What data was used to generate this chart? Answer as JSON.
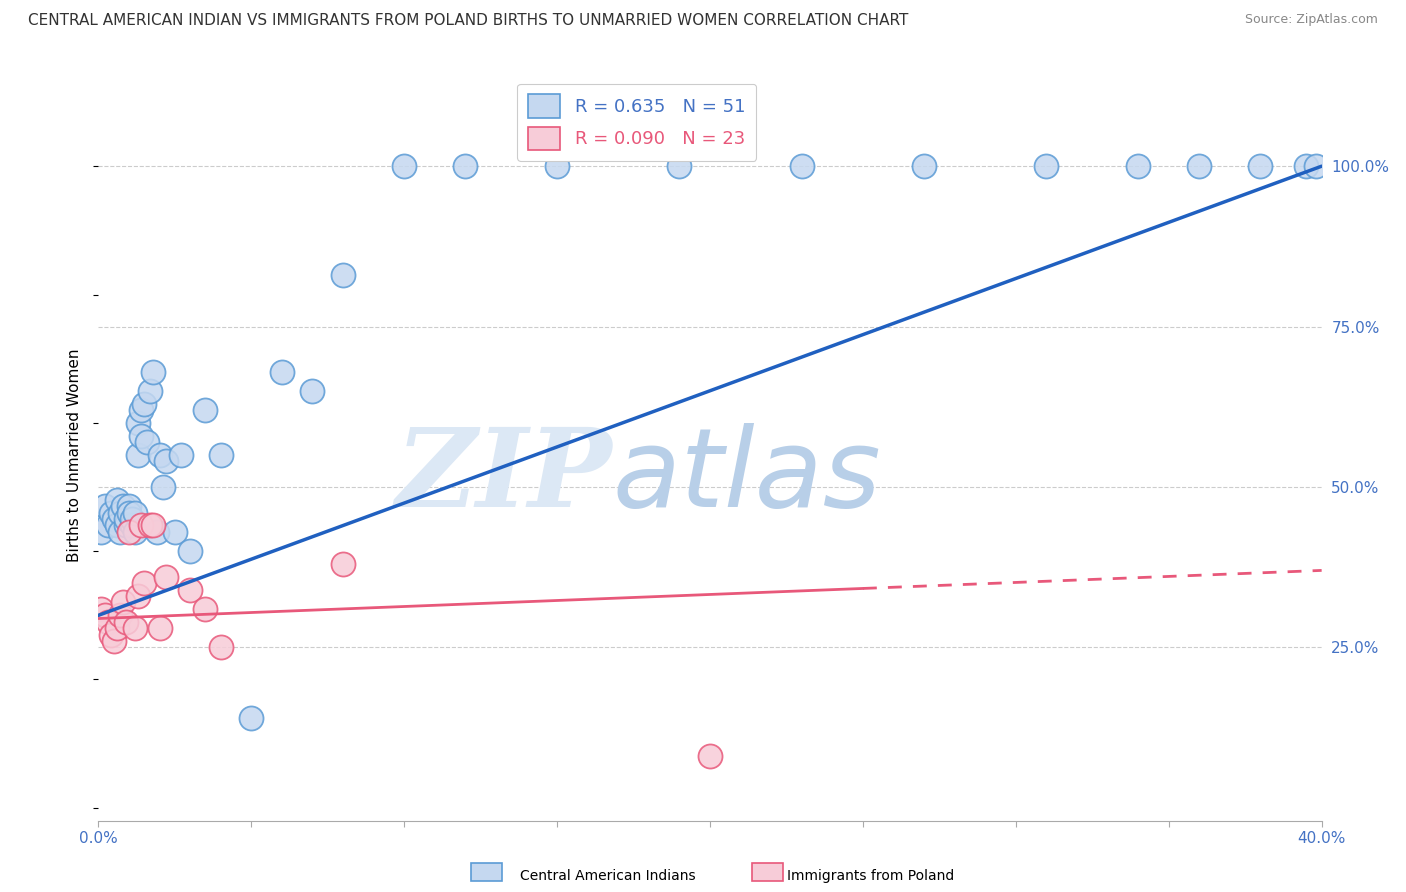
{
  "title": "CENTRAL AMERICAN INDIAN VS IMMIGRANTS FROM POLAND BIRTHS TO UNMARRIED WOMEN CORRELATION CHART",
  "source": "Source: ZipAtlas.com",
  "ylabel": "Births to Unmarried Women",
  "yaxis_ticks": [
    "25.0%",
    "50.0%",
    "75.0%",
    "100.0%"
  ],
  "yaxis_tick_vals": [
    0.25,
    0.5,
    0.75,
    1.0
  ],
  "legend_label_blue": "Central American Indians",
  "legend_label_pink": "Immigrants from Poland",
  "blue_color": "#c5d8f0",
  "blue_edge_color": "#5b9bd5",
  "pink_color": "#f7ccd8",
  "pink_edge_color": "#e8587a",
  "blue_line_color": "#2060c0",
  "pink_line_color": "#e8587a",
  "blue_scatter_x": [
    0.001,
    0.002,
    0.003,
    0.004,
    0.005,
    0.006,
    0.006,
    0.007,
    0.007,
    0.008,
    0.009,
    0.009,
    0.01,
    0.01,
    0.011,
    0.011,
    0.012,
    0.012,
    0.013,
    0.013,
    0.014,
    0.014,
    0.015,
    0.016,
    0.017,
    0.018,
    0.019,
    0.02,
    0.021,
    0.022,
    0.025,
    0.027,
    0.03,
    0.035,
    0.04,
    0.05,
    0.06,
    0.07,
    0.08,
    0.1,
    0.12,
    0.15,
    0.19,
    0.23,
    0.27,
    0.31,
    0.34,
    0.36,
    0.38,
    0.395,
    0.398
  ],
  "blue_scatter_y": [
    0.43,
    0.47,
    0.44,
    0.46,
    0.45,
    0.48,
    0.44,
    0.46,
    0.43,
    0.47,
    0.44,
    0.45,
    0.47,
    0.46,
    0.44,
    0.45,
    0.43,
    0.46,
    0.55,
    0.6,
    0.58,
    0.62,
    0.63,
    0.57,
    0.65,
    0.68,
    0.43,
    0.55,
    0.5,
    0.54,
    0.43,
    0.55,
    0.4,
    0.62,
    0.55,
    0.14,
    0.68,
    0.65,
    0.83,
    1.0,
    1.0,
    1.0,
    1.0,
    1.0,
    1.0,
    1.0,
    1.0,
    1.0,
    1.0,
    1.0,
    1.0
  ],
  "pink_scatter_x": [
    0.001,
    0.002,
    0.003,
    0.004,
    0.005,
    0.006,
    0.007,
    0.008,
    0.009,
    0.01,
    0.012,
    0.013,
    0.014,
    0.015,
    0.017,
    0.018,
    0.02,
    0.022,
    0.03,
    0.035,
    0.04,
    0.08,
    0.2
  ],
  "pink_scatter_y": [
    0.31,
    0.3,
    0.29,
    0.27,
    0.26,
    0.28,
    0.3,
    0.32,
    0.29,
    0.43,
    0.28,
    0.33,
    0.44,
    0.35,
    0.44,
    0.44,
    0.28,
    0.36,
    0.34,
    0.31,
    0.25,
    0.38,
    0.08
  ],
  "blue_line_x0": 0.0,
  "blue_line_y0": 0.3,
  "blue_line_x1": 0.4,
  "blue_line_y1": 1.0,
  "pink_line_x0": 0.0,
  "pink_line_y0": 0.295,
  "pink_line_x1": 0.4,
  "pink_line_y1": 0.37,
  "xlim": [
    0.0,
    0.4
  ],
  "ylim": [
    -0.02,
    1.12
  ],
  "background_color": "#ffffff",
  "grid_color": "#cccccc",
  "watermark_zip": "ZIP",
  "watermark_atlas": "atlas",
  "watermark_color": "#dce8f5"
}
